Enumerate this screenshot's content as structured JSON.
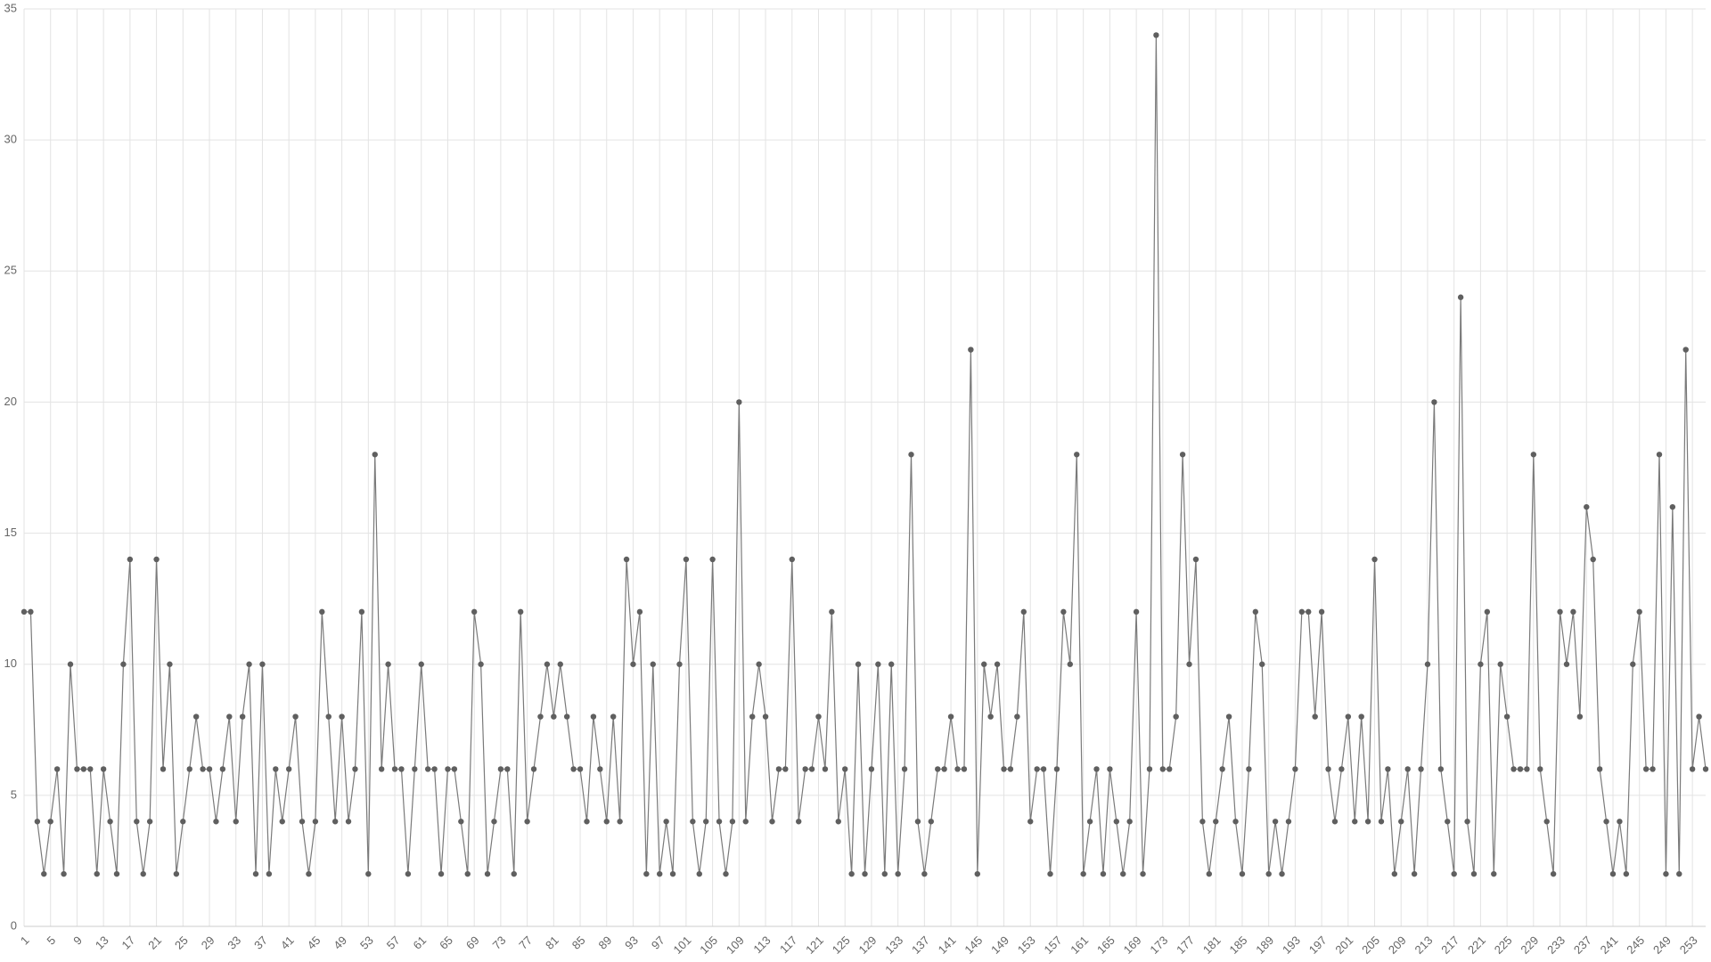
{
  "chart_data": {
    "type": "line",
    "color": "#7a7a7a",
    "marker_color": "#5f5f5f",
    "grid": true,
    "ylim": [
      0,
      35
    ],
    "yticks": [
      0,
      5,
      10,
      15,
      20,
      25,
      30,
      35
    ],
    "categories": [
      1,
      null,
      null,
      null,
      5,
      null,
      null,
      null,
      9,
      null,
      null,
      null,
      13,
      null,
      null,
      null,
      17,
      null,
      null,
      null,
      21,
      null,
      null,
      null,
      25,
      null,
      null,
      null,
      29,
      null,
      null,
      null,
      33,
      null,
      null,
      null,
      37,
      null,
      null,
      null,
      41,
      null,
      null,
      null,
      45,
      null,
      null,
      null,
      49,
      null,
      null,
      null,
      53,
      null,
      null,
      null,
      57,
      null,
      null,
      null,
      61,
      null,
      null,
      null,
      65,
      null,
      null,
      null,
      69,
      null,
      null,
      null,
      73,
      null,
      null,
      null,
      77,
      null,
      null,
      null,
      81,
      null,
      null,
      null,
      85,
      null,
      null,
      null,
      89,
      null,
      null,
      null,
      93,
      null,
      null,
      null,
      97,
      null,
      null,
      null,
      101,
      null,
      null,
      null,
      105,
      null,
      null,
      null,
      109,
      null,
      null,
      null,
      113,
      null,
      null,
      null,
      117,
      null,
      null,
      null,
      121,
      null,
      null,
      null,
      125,
      null,
      null,
      null,
      129,
      null,
      null,
      null,
      133,
      null,
      null,
      null,
      137,
      null,
      null,
      null,
      141,
      null,
      null,
      null,
      145,
      null,
      null,
      null,
      149,
      null,
      null,
      null,
      153,
      null,
      null,
      null,
      157,
      null,
      null,
      null,
      161,
      null,
      null,
      null,
      165,
      null,
      null,
      null,
      169,
      null,
      null,
      null,
      173,
      null,
      null,
      null,
      177,
      null,
      null,
      null,
      181,
      null,
      null,
      null,
      185,
      null,
      null,
      null,
      189,
      null,
      null,
      null,
      193,
      null,
      null,
      null,
      197,
      null,
      null,
      null,
      201,
      null,
      null,
      null,
      205,
      null,
      null,
      null,
      209,
      null,
      null,
      null,
      213,
      null,
      null,
      null,
      217,
      null,
      null,
      null,
      221,
      null,
      null,
      null,
      225,
      null,
      null,
      null,
      229,
      null,
      null,
      null,
      233,
      null,
      null,
      null,
      237,
      null,
      null,
      null,
      241,
      null,
      null,
      null,
      245,
      null,
      null,
      null,
      249,
      null,
      null,
      null,
      253,
      null,
      null
    ],
    "values": [
      12,
      12,
      4,
      2,
      4,
      6,
      2,
      10,
      6,
      6,
      6,
      2,
      6,
      4,
      2,
      10,
      14,
      4,
      2,
      4,
      14,
      6,
      10,
      2,
      4,
      6,
      8,
      6,
      6,
      4,
      6,
      8,
      4,
      8,
      10,
      2,
      10,
      2,
      6,
      4,
      6,
      8,
      4,
      2,
      4,
      12,
      8,
      4,
      8,
      4,
      6,
      12,
      2,
      18,
      6,
      10,
      6,
      6,
      2,
      6,
      10,
      6,
      6,
      2,
      6,
      6,
      4,
      2,
      12,
      10,
      2,
      4,
      6,
      6,
      2,
      12,
      4,
      6,
      8,
      10,
      8,
      10,
      8,
      6,
      6,
      4,
      8,
      6,
      4,
      8,
      4,
      14,
      10,
      12,
      2,
      10,
      2,
      4,
      2,
      10,
      14,
      4,
      2,
      4,
      14,
      4,
      2,
      4,
      20,
      4,
      8,
      10,
      8,
      4,
      6,
      6,
      14,
      4,
      6,
      6,
      8,
      6,
      12,
      4,
      6,
      2,
      10,
      2,
      6,
      10,
      2,
      10,
      2,
      6,
      18,
      4,
      2,
      4,
      6,
      6,
      8,
      6,
      6,
      22,
      2,
      10,
      8,
      10,
      6,
      6,
      8,
      12,
      4,
      6,
      6,
      2,
      6,
      12,
      10,
      18,
      2,
      4,
      6,
      2,
      6,
      4,
      2,
      4,
      12,
      2,
      6,
      34,
      6,
      6,
      8,
      18,
      10,
      14,
      4,
      2,
      4,
      6,
      8,
      4,
      2,
      6,
      12,
      10,
      2,
      4,
      2,
      4,
      6,
      12,
      12,
      8,
      12,
      6,
      4,
      6,
      8,
      4,
      8,
      4,
      14,
      4,
      6,
      2,
      4,
      6,
      2,
      6,
      10,
      20,
      6,
      4,
      2,
      24,
      4,
      2,
      10,
      12,
      2,
      10,
      8,
      6,
      6,
      6,
      18,
      6,
      4,
      2,
      12,
      10,
      12,
      8,
      16,
      14,
      6,
      4,
      2,
      4,
      2,
      10,
      12,
      6,
      6,
      18,
      2,
      16,
      2,
      22,
      6,
      8,
      6
    ]
  }
}
